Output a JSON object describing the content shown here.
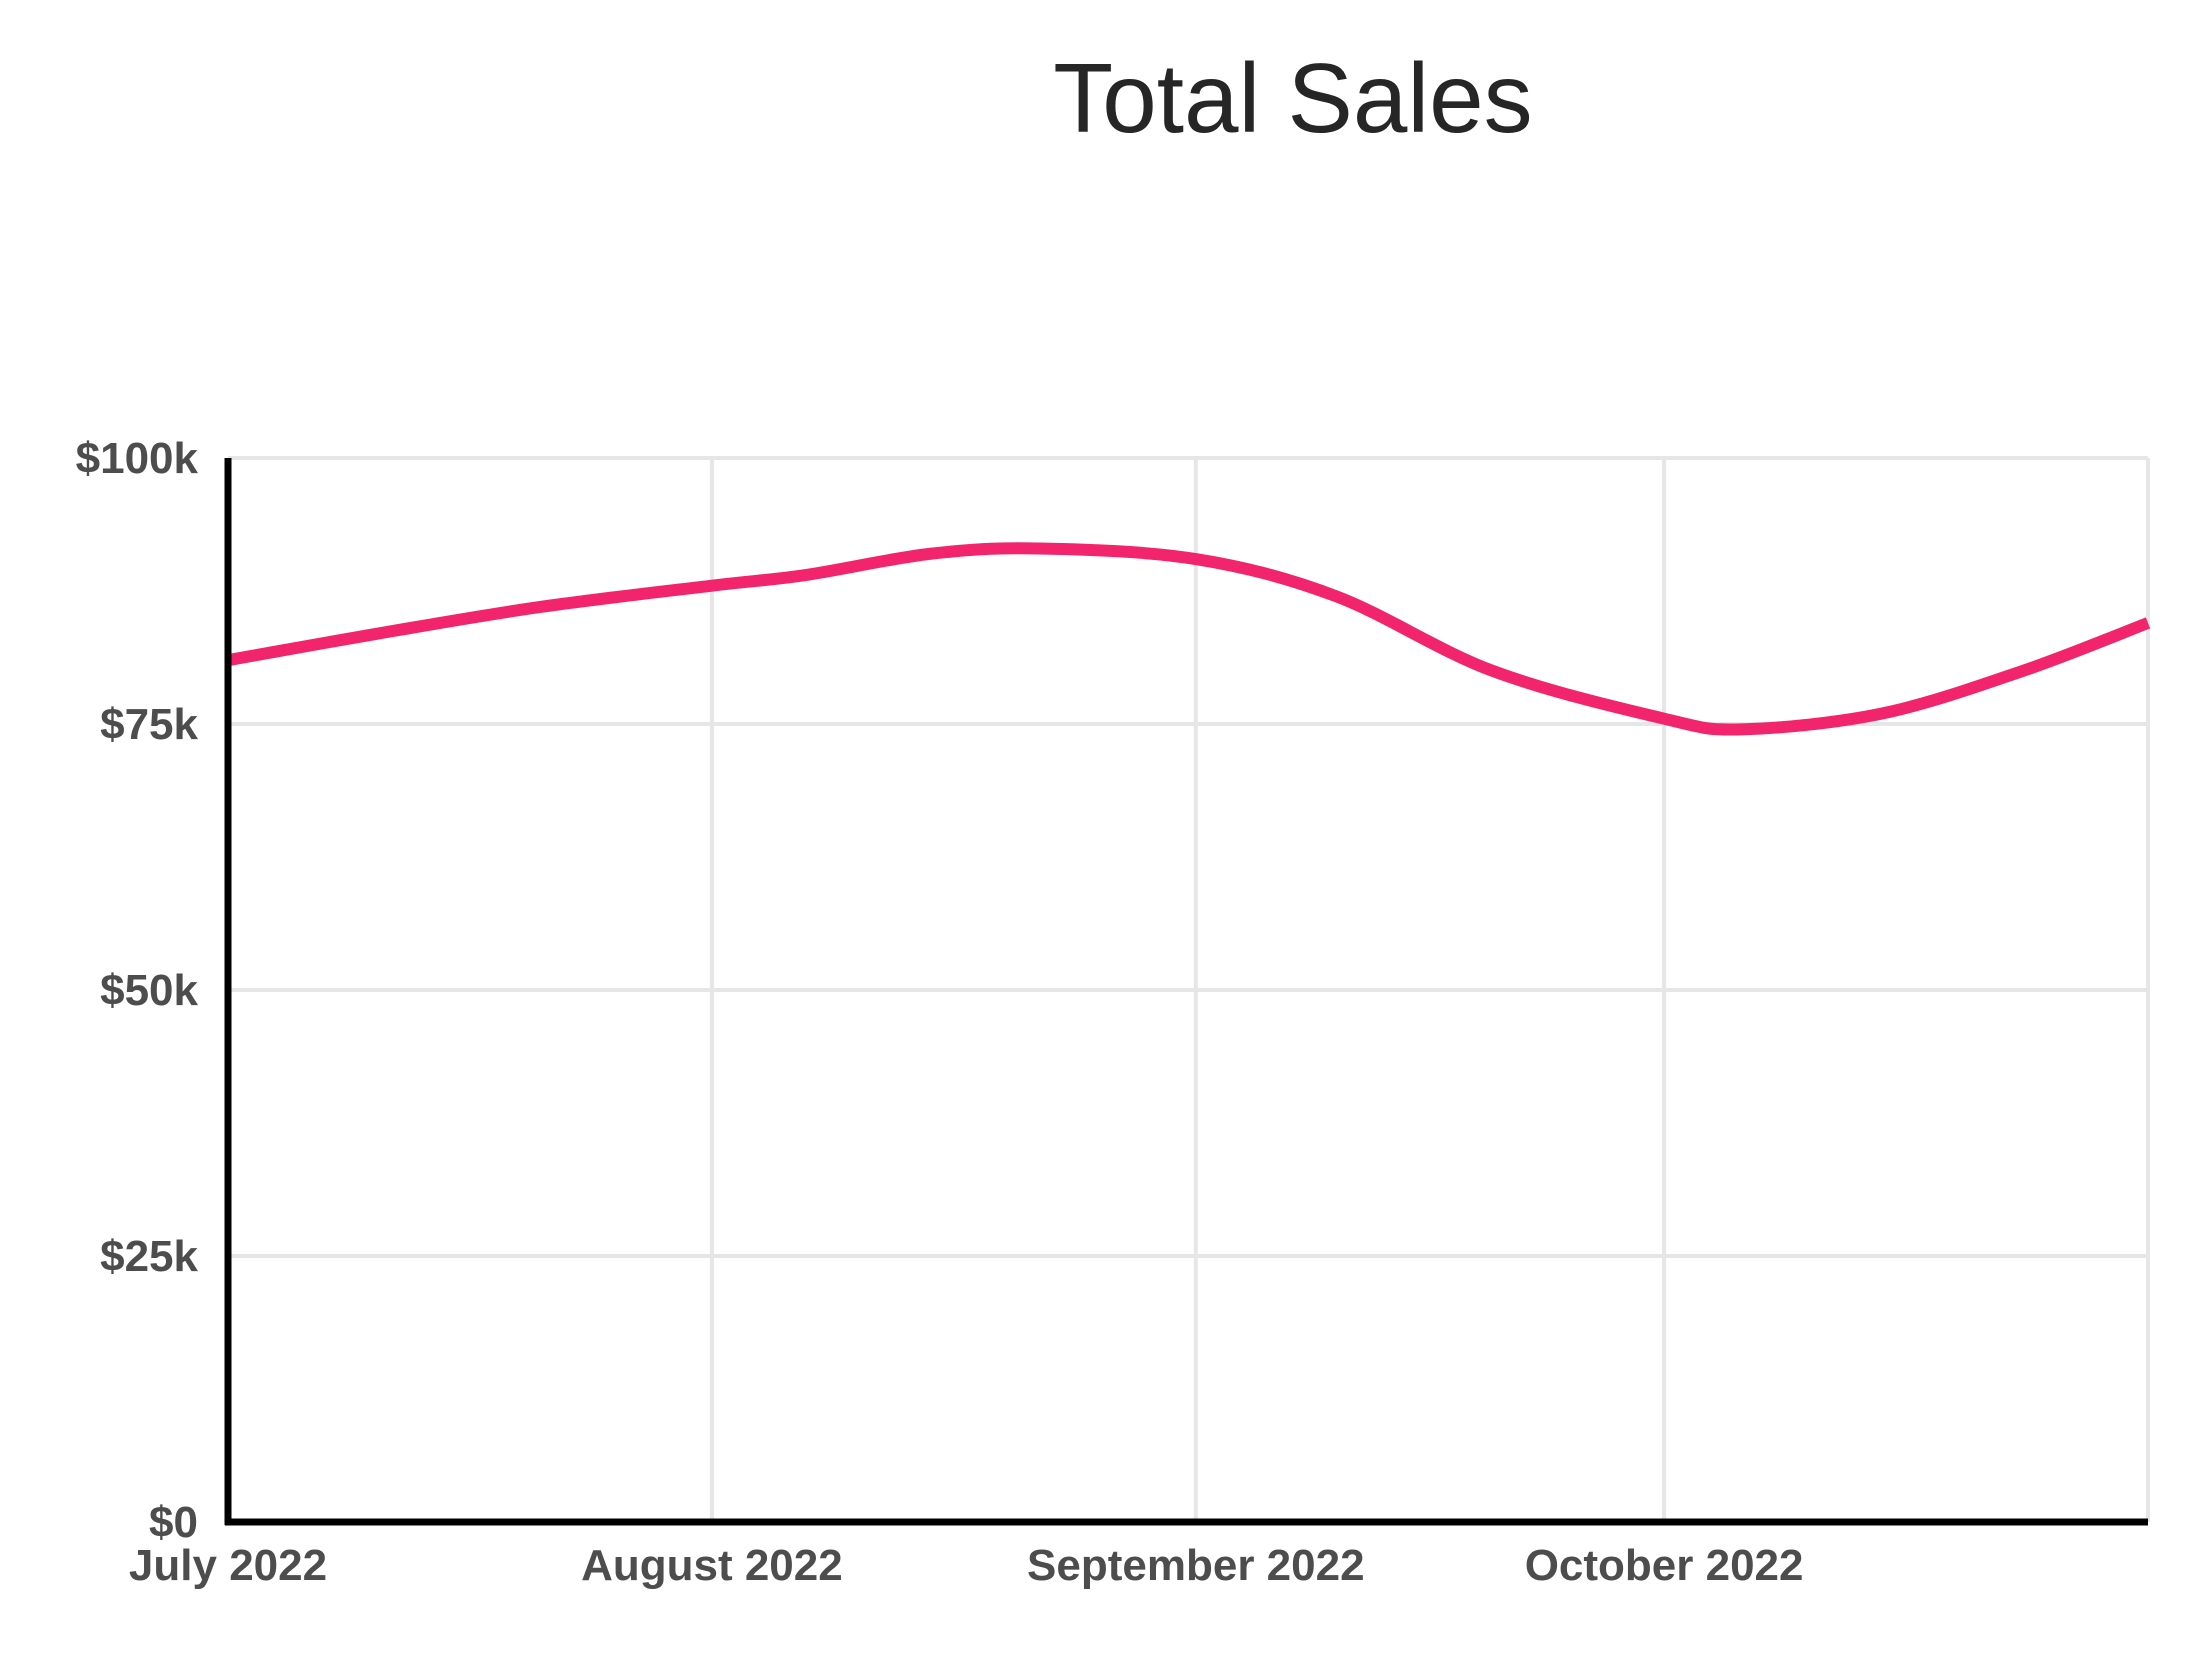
{
  "chart_data": {
    "type": "line",
    "title": "Total Sales",
    "xlabel": "",
    "ylabel": "",
    "ylim": [
      0,
      100000
    ],
    "y_ticks": [
      {
        "value": 0,
        "label": "$0"
      },
      {
        "value": 25000,
        "label": "$25k"
      },
      {
        "value": 50000,
        "label": "$50k"
      },
      {
        "value": 75000,
        "label": "$75k"
      },
      {
        "value": 100000,
        "label": "$100k"
      }
    ],
    "xlim": [
      "2022-07-01",
      "2022-11-01"
    ],
    "x_ticks": [
      {
        "value": "2022-07-01",
        "label": "July 2022"
      },
      {
        "value": "2022-08-01",
        "label": "August 2022"
      },
      {
        "value": "2022-09-01",
        "label": "September 2022"
      },
      {
        "value": "2022-10-01",
        "label": "October 2022"
      }
    ],
    "grid": true,
    "legend": "none",
    "series": [
      {
        "color": "#f2246b",
        "x": [
          "2022-07-01",
          "2022-07-11",
          "2022-07-21",
          "2022-08-01",
          "2022-08-07",
          "2022-08-15",
          "2022-08-22",
          "2022-09-01",
          "2022-09-10",
          "2022-09-20",
          "2022-10-01",
          "2022-10-06",
          "2022-10-15",
          "2022-10-24",
          "2022-11-01"
        ],
        "y": [
          81000,
          83600,
          86000,
          88000,
          89000,
          91000,
          91500,
          90500,
          87000,
          80000,
          75500,
          74500,
          76000,
          80000,
          84500
        ]
      }
    ]
  }
}
